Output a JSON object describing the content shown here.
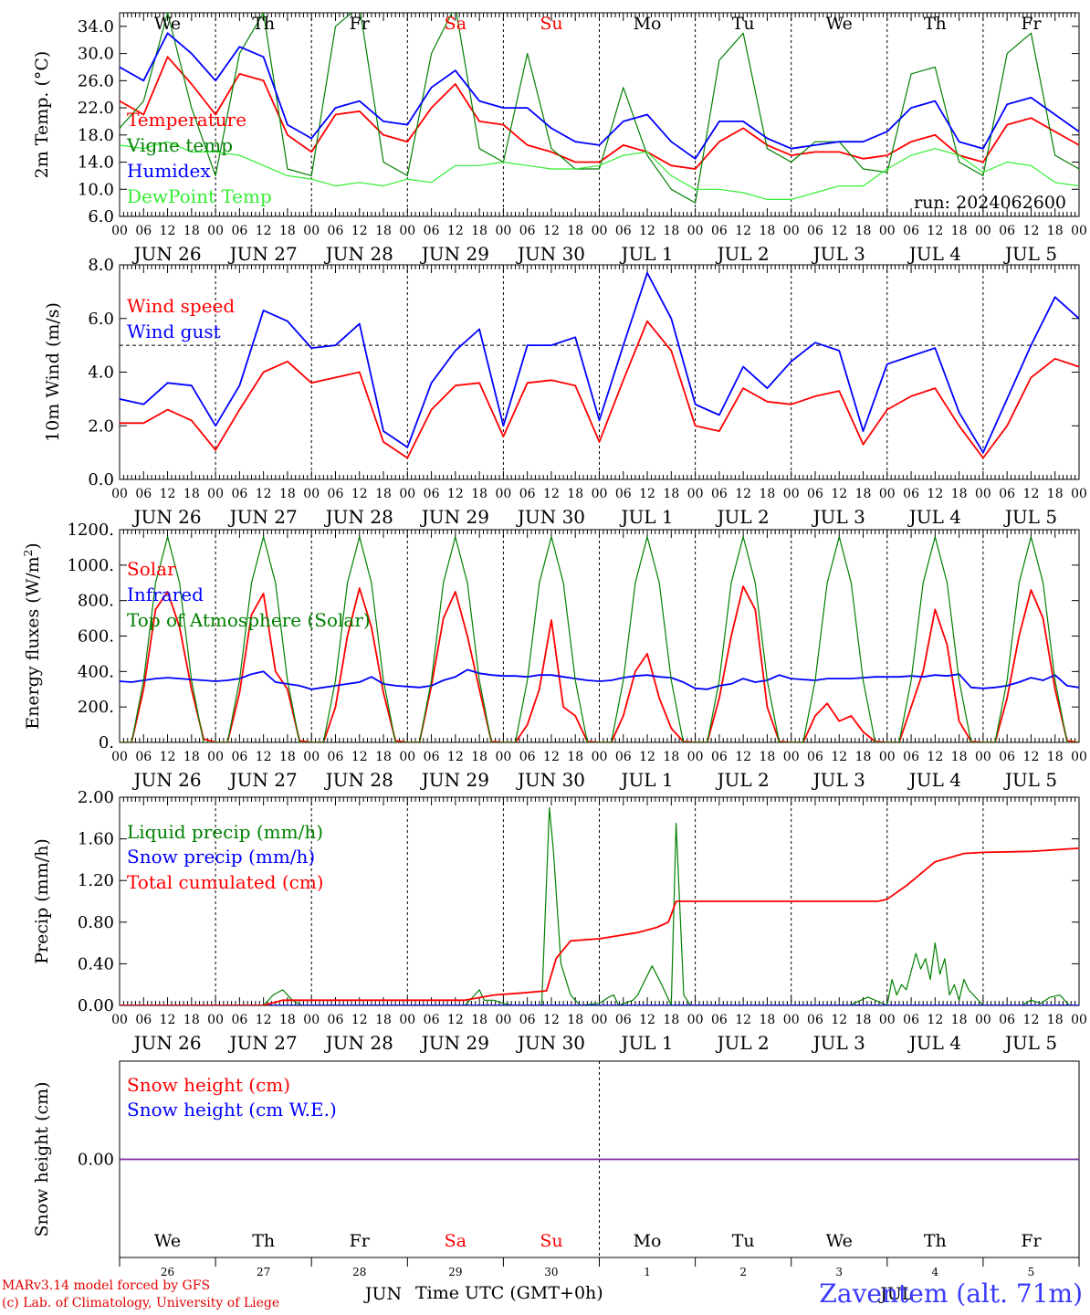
{
  "station": "Zaventem (alt. 71m)",
  "credits": [
    "MARv3.14 model forced by GFS",
    "(c) Lab. of Climatology, University of Liege"
  ],
  "x_axis_title": "Time UTC (GMT+0h)",
  "run_label": "run: 2024062600",
  "day_names": [
    "We",
    "Th",
    "Fr",
    "Sa",
    "Su",
    "Mo",
    "Tu",
    "We",
    "Th",
    "Fr"
  ],
  "weekend_flags": [
    false,
    false,
    false,
    true,
    true,
    false,
    false,
    false,
    false,
    false
  ],
  "date_labels": [
    "JUN 26",
    "JUN 27",
    "JUN 28",
    "JUN 29",
    "JUN 30",
    "JUL  1",
    "JUL  2",
    "JUL  3",
    "JUL  4",
    "JUL  5"
  ],
  "hour_ticks": [
    "00",
    "06",
    "12",
    "18"
  ],
  "last_hour_tick": "00",
  "bottom_day_numbers": [
    "26",
    "27",
    "28",
    "29",
    "30",
    "1",
    "2",
    "3",
    "4",
    "5"
  ],
  "bottom_month_labels": [
    "JUN",
    "JUL"
  ],
  "colors": {
    "red": "#ff0000",
    "dark_green": "#008000",
    "blue": "#0000ff",
    "light_green": "#33ee33",
    "purple": "#7a2a9a"
  },
  "chart_data": [
    {
      "type": "line",
      "ylabel": "2m Temp. (°C)",
      "ylim": [
        6,
        36
      ],
      "y_ticks": [
        "6.0",
        "10.0",
        "14.0",
        "18.0",
        "22.0",
        "26.0",
        "30.0",
        "34.0"
      ],
      "day_name_labels": true,
      "x_days": [
        0,
        0.25,
        0.5,
        0.75,
        1,
        1.25,
        1.5,
        1.75,
        2,
        2.25,
        2.5,
        2.75,
        3,
        3.25,
        3.5,
        3.75,
        4,
        4.25,
        4.5,
        4.75,
        5,
        5.25,
        5.5,
        5.75,
        6,
        6.25,
        6.5,
        6.75,
        7,
        7.25,
        7.5,
        7.75,
        8,
        8.25,
        8.5,
        8.75,
        9,
        9.25,
        9.5,
        9.75,
        10
      ],
      "series": [
        {
          "name": "Temperature",
          "color": "red",
          "values": [
            23.0,
            21.0,
            29.5,
            25.5,
            21.0,
            27.0,
            26.0,
            18.0,
            15.5,
            21.0,
            21.5,
            18.0,
            17.0,
            22.0,
            25.5,
            20.0,
            19.5,
            16.5,
            15.5,
            14.0,
            14.0,
            16.5,
            15.5,
            13.5,
            13.0,
            17.0,
            19.0,
            16.5,
            15.0,
            15.5,
            15.5,
            14.5,
            15.0,
            17.0,
            18.0,
            15.0,
            14.0,
            19.5,
            20.5,
            18.5,
            16.5
          ]
        },
        {
          "name": "Vigne temp",
          "color": "dark_green",
          "values": [
            19.0,
            23.0,
            36.0,
            22.0,
            12.0,
            30.0,
            36.0,
            13.0,
            12.0,
            34.0,
            37.0,
            14.0,
            12.0,
            30.0,
            37.0,
            16.0,
            14.0,
            30.0,
            16.0,
            13.0,
            13.0,
            25.0,
            15.0,
            10.0,
            8.0,
            29.0,
            33.0,
            16.0,
            14.0,
            17.0,
            17.0,
            13.0,
            12.5,
            27.0,
            28.0,
            14.0,
            12.0,
            30.0,
            33.0,
            15.0,
            13.0
          ]
        },
        {
          "name": "Humidex",
          "color": "blue",
          "values": [
            28.0,
            26.0,
            33.0,
            30.0,
            26.0,
            31.0,
            29.5,
            19.5,
            17.5,
            22.0,
            23.0,
            20.0,
            19.5,
            25.0,
            27.5,
            23.0,
            22.0,
            22.0,
            19.0,
            17.0,
            16.5,
            20.0,
            21.0,
            17.0,
            14.5,
            20.0,
            20.0,
            17.5,
            16.0,
            16.5,
            17.0,
            17.0,
            18.5,
            22.0,
            23.0,
            17.0,
            16.0,
            22.5,
            23.5,
            21.0,
            18.5
          ]
        },
        {
          "name": "DewPoint Temp",
          "color": "light_green",
          "values": [
            16.5,
            16.0,
            17.0,
            15.5,
            15.5,
            15.0,
            13.5,
            12.0,
            11.5,
            10.5,
            11.0,
            10.5,
            11.5,
            11.0,
            13.5,
            13.5,
            14.0,
            13.5,
            13.0,
            13.0,
            13.5,
            15.0,
            15.5,
            12.0,
            10.0,
            10.0,
            9.5,
            8.5,
            8.5,
            9.5,
            10.5,
            10.5,
            13.0,
            15.0,
            16.0,
            15.0,
            12.5,
            14.0,
            13.5,
            11.0,
            10.5
          ]
        }
      ]
    },
    {
      "type": "line",
      "ylabel": "10m Wind (m/s)",
      "ylim": [
        0,
        8
      ],
      "y_ticks": [
        "0.0",
        "2.0",
        "4.0",
        "6.0",
        "8.0"
      ],
      "reference_line": 5,
      "x_days": [
        0,
        0.25,
        0.5,
        0.75,
        1,
        1.25,
        1.5,
        1.75,
        2,
        2.25,
        2.5,
        2.75,
        3,
        3.25,
        3.5,
        3.75,
        4,
        4.25,
        4.5,
        4.75,
        5,
        5.25,
        5.5,
        5.75,
        6,
        6.25,
        6.5,
        6.75,
        7,
        7.25,
        7.5,
        7.75,
        8,
        8.25,
        8.5,
        8.75,
        9,
        9.25,
        9.5,
        9.75,
        10
      ],
      "series": [
        {
          "name": "Wind speed",
          "color": "red",
          "values": [
            2.1,
            2.1,
            2.6,
            2.2,
            1.1,
            2.6,
            4.0,
            4.4,
            3.6,
            3.8,
            4.0,
            1.4,
            0.8,
            2.6,
            3.5,
            3.6,
            1.6,
            3.6,
            3.7,
            3.5,
            1.4,
            3.7,
            5.9,
            4.8,
            2.0,
            1.8,
            3.4,
            2.9,
            2.8,
            3.1,
            3.3,
            1.3,
            2.6,
            3.1,
            3.4,
            2.0,
            0.8,
            2.0,
            3.8,
            4.5,
            4.2
          ]
        },
        {
          "name": "Wind gust",
          "color": "blue",
          "values": [
            3.0,
            2.8,
            3.6,
            3.5,
            2.0,
            3.5,
            6.3,
            5.9,
            4.9,
            5.0,
            5.8,
            1.8,
            1.2,
            3.6,
            4.8,
            5.6,
            2.0,
            5.0,
            5.0,
            5.3,
            2.2,
            5.0,
            7.7,
            6.0,
            2.8,
            2.4,
            4.2,
            3.4,
            4.4,
            5.1,
            4.8,
            1.8,
            4.3,
            4.6,
            4.9,
            2.5,
            1.0,
            3.0,
            5.0,
            6.8,
            6.0
          ]
        }
      ]
    },
    {
      "type": "line",
      "ylabel": "Energy fluxes (W/m²)",
      "ylim": [
        0,
        1200
      ],
      "y_ticks": [
        "0.",
        "200.",
        "400.",
        "600.",
        "800.",
        "1000.",
        "1200."
      ],
      "x_days": [
        0,
        0.125,
        0.25,
        0.375,
        0.5,
        0.625,
        0.75,
        0.875,
        1,
        1.125,
        1.25,
        1.375,
        1.5,
        1.625,
        1.75,
        1.875,
        2,
        2.125,
        2.25,
        2.375,
        2.5,
        2.625,
        2.75,
        2.875,
        3,
        3.125,
        3.25,
        3.375,
        3.5,
        3.625,
        3.75,
        3.875,
        4,
        4.125,
        4.25,
        4.375,
        4.5,
        4.625,
        4.75,
        4.875,
        5,
        5.125,
        5.25,
        5.375,
        5.5,
        5.625,
        5.75,
        5.875,
        6,
        6.125,
        6.25,
        6.375,
        6.5,
        6.625,
        6.75,
        6.875,
        7,
        7.125,
        7.25,
        7.375,
        7.5,
        7.625,
        7.75,
        7.875,
        8,
        8.125,
        8.25,
        8.375,
        8.5,
        8.625,
        8.75,
        8.875,
        9,
        9.125,
        9.25,
        9.375,
        9.5,
        9.625,
        9.75,
        9.875,
        10
      ],
      "series": [
        {
          "name": "Solar",
          "color": "red",
          "values": [
            0,
            0,
            300,
            750,
            850,
            650,
            300,
            20,
            0,
            0,
            280,
            720,
            840,
            400,
            300,
            10,
            0,
            0,
            200,
            600,
            870,
            650,
            280,
            10,
            0,
            0,
            320,
            700,
            850,
            600,
            300,
            5,
            0,
            0,
            100,
            300,
            690,
            200,
            150,
            5,
            0,
            0,
            150,
            400,
            500,
            250,
            80,
            5,
            0,
            0,
            250,
            600,
            880,
            750,
            200,
            5,
            0,
            0,
            150,
            220,
            120,
            150,
            60,
            5,
            0,
            0,
            200,
            400,
            750,
            550,
            120,
            5,
            0,
            0,
            250,
            600,
            860,
            700,
            300,
            10,
            0
          ]
        },
        {
          "name": "Infrared",
          "color": "blue",
          "values": [
            345,
            340,
            350,
            360,
            365,
            360,
            355,
            350,
            345,
            350,
            360,
            385,
            400,
            340,
            330,
            320,
            300,
            310,
            320,
            330,
            340,
            370,
            330,
            320,
            315,
            310,
            320,
            350,
            370,
            410,
            390,
            380,
            375,
            375,
            370,
            380,
            380,
            370,
            360,
            350,
            345,
            350,
            365,
            375,
            380,
            370,
            365,
            340,
            305,
            300,
            320,
            330,
            360,
            340,
            350,
            380,
            360,
            355,
            350,
            360,
            360,
            360,
            365,
            370,
            370,
            370,
            375,
            370,
            380,
            375,
            385,
            310,
            305,
            310,
            320,
            340,
            365,
            350,
            380,
            320,
            310
          ]
        },
        {
          "name": "Top of Atmosphere (Solar)",
          "color": "dark_green",
          "values": [
            0,
            0,
            350,
            900,
            1160,
            900,
            350,
            0,
            0,
            0,
            350,
            900,
            1160,
            900,
            350,
            0,
            0,
            0,
            350,
            900,
            1160,
            900,
            350,
            0,
            0,
            0,
            350,
            900,
            1160,
            900,
            350,
            0,
            0,
            0,
            350,
            900,
            1160,
            900,
            350,
            0,
            0,
            0,
            350,
            900,
            1160,
            900,
            350,
            0,
            0,
            0,
            350,
            900,
            1160,
            900,
            350,
            0,
            0,
            0,
            350,
            900,
            1160,
            900,
            350,
            0,
            0,
            0,
            350,
            900,
            1160,
            900,
            350,
            0,
            0,
            0,
            350,
            900,
            1160,
            900,
            350,
            0,
            0
          ]
        }
      ]
    },
    {
      "type": "line",
      "ylabel": "Precip (mm/h)",
      "ylim": [
        0,
        2
      ],
      "y_ticks": [
        "0.00",
        "0.40",
        "0.80",
        "1.20",
        "1.60",
        "2.00"
      ],
      "series": [
        {
          "name": "Liquid precip (mm/h)",
          "color": "dark_green",
          "x": [
            0,
            1.5,
            1.6,
            1.7,
            1.8,
            1.9,
            3.6,
            3.7,
            3.75,
            3.8,
            3.9,
            4.0,
            4.1,
            4.4,
            4.48,
            4.52,
            4.6,
            4.7,
            4.8,
            5.0,
            5.1,
            5.15,
            5.2,
            5.35,
            5.4,
            5.55,
            5.65,
            5.75,
            5.8,
            5.88,
            5.95,
            6.1,
            7.6,
            7.8,
            8.0,
            8.05,
            8.1,
            8.15,
            8.2,
            8.3,
            8.35,
            8.4,
            8.45,
            8.5,
            8.55,
            8.6,
            8.65,
            8.7,
            8.75,
            8.8,
            8.85,
            9.0,
            9.4,
            9.5,
            9.6,
            9.7,
            9.8,
            9.9,
            10
          ],
          "values": [
            0,
            0,
            0.1,
            0.15,
            0.05,
            0,
            0,
            0.1,
            0.15,
            0.05,
            0.05,
            0.02,
            0,
            0,
            1.9,
            1.5,
            0.4,
            0.1,
            0,
            0.02,
            0.08,
            0.1,
            0,
            0.05,
            0.1,
            0.38,
            0.2,
            0,
            1.75,
            0.1,
            0,
            0,
            0,
            0.08,
            0,
            0.25,
            0.1,
            0.2,
            0.15,
            0.5,
            0.35,
            0.45,
            0.25,
            0.6,
            0.3,
            0.45,
            0.1,
            0.2,
            0.05,
            0.25,
            0.15,
            0,
            0,
            0.05,
            0.02,
            0.08,
            0.1,
            0,
            0
          ]
        },
        {
          "name": "Snow precip (mm/h)",
          "color": "blue",
          "x": [
            0,
            10
          ],
          "values": [
            0,
            0
          ]
        },
        {
          "name": "Total cumulated (cm)",
          "color": "red",
          "x": [
            0,
            1.5,
            1.7,
            3.6,
            3.9,
            4.2,
            4.45,
            4.55,
            4.7,
            5.0,
            5.4,
            5.6,
            5.72,
            5.8,
            6.0,
            6.5,
            7.5,
            7.9,
            8.0,
            8.2,
            8.5,
            8.8,
            9.0,
            9.5,
            10
          ],
          "values": [
            0,
            0,
            0.05,
            0.05,
            0.1,
            0.12,
            0.14,
            0.45,
            0.62,
            0.64,
            0.7,
            0.75,
            0.8,
            1.0,
            1.0,
            1.0,
            1.0,
            1.0,
            1.02,
            1.15,
            1.38,
            1.46,
            1.47,
            1.48,
            1.51
          ]
        }
      ]
    },
    {
      "type": "line",
      "ylabel": "Snow height (cm)",
      "ylim": [
        -1,
        1
      ],
      "y_ticks": [
        "0.00"
      ],
      "bottom_axis": true,
      "series": [
        {
          "name": "Snow height (cm)",
          "color": "red",
          "x": [
            0,
            10
          ],
          "values": [
            0,
            0
          ]
        },
        {
          "name": "Snow height (cm W.E.)",
          "color": "blue",
          "x": [
            0,
            10
          ],
          "values": [
            0,
            0
          ]
        }
      ]
    }
  ]
}
